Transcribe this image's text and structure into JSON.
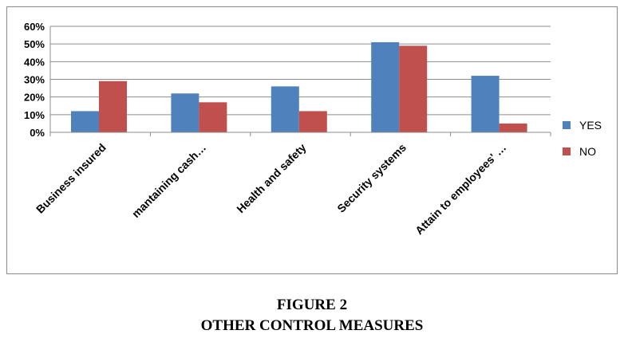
{
  "chart_data": {
    "type": "bar",
    "categories": [
      "Business insured",
      "mantaining cash…",
      "Health and safety",
      "Security systems",
      "Attain to employees' …"
    ],
    "series": [
      {
        "name": "YES",
        "values": [
          12,
          22,
          26,
          51,
          32
        ],
        "color": "#4f81bd"
      },
      {
        "name": "NO",
        "values": [
          29,
          17,
          12,
          49,
          5
        ],
        "color": "#c0504d"
      }
    ],
    "yticks": [
      "0%",
      "10%",
      "20%",
      "30%",
      "40%",
      "50%",
      "60%"
    ],
    "ylim": [
      0,
      60
    ],
    "grid": true,
    "legend": "right"
  },
  "caption": {
    "line1": "FIGURE 2",
    "line2": "OTHER CONTROL MEASURES"
  }
}
